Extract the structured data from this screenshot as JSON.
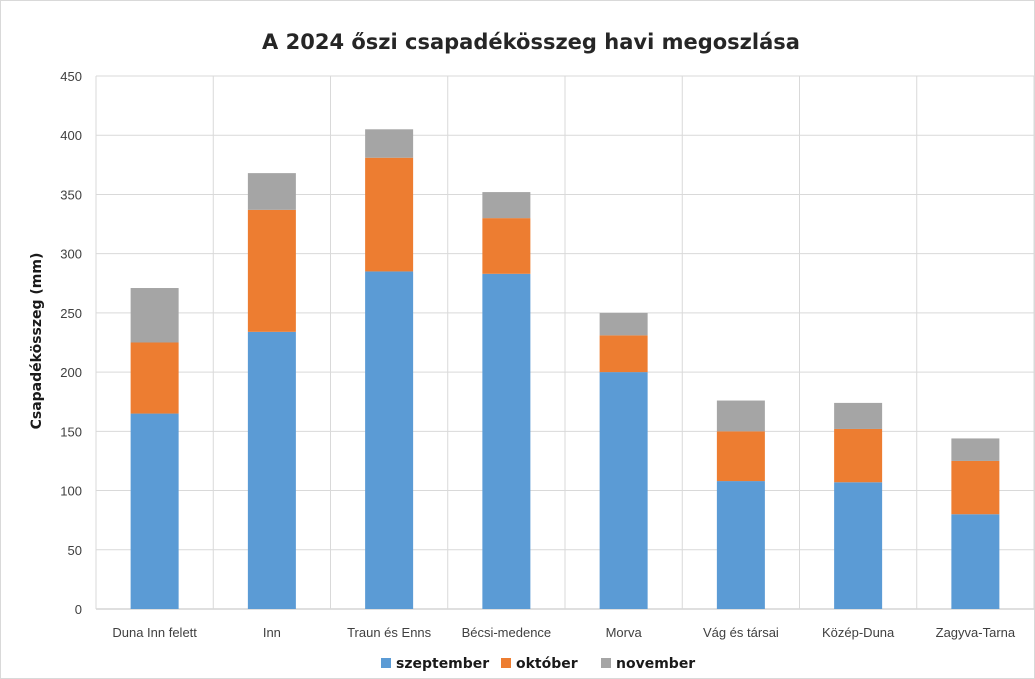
{
  "chart_data": {
    "type": "bar",
    "stacked": true,
    "title": "A 2024 őszi csapadékösszeg havi megoszlása",
    "xlabel": "",
    "ylabel": "Csapadékösszeg (mm)",
    "ylim": [
      0,
      450
    ],
    "yticks": [
      "0",
      "50",
      "100",
      "150",
      "200",
      "250",
      "300",
      "350",
      "400",
      "450"
    ],
    "grid": true,
    "legend_position": "bottom",
    "categories": [
      "Duna Inn felett",
      "Inn",
      "Traun és Enns",
      "Bécsi-medence",
      "Morva",
      "Vág és társai",
      "Közép-Duna",
      "Zagyva-Tarna"
    ],
    "series": [
      {
        "name": "szeptember",
        "color": "#5b9bd5",
        "values": [
          165,
          234,
          285,
          283,
          200,
          108,
          107,
          80
        ]
      },
      {
        "name": "október",
        "color": "#ed7d31",
        "values": [
          60,
          103,
          96,
          47,
          31,
          42,
          45,
          45
        ]
      },
      {
        "name": "november",
        "color": "#a5a5a5",
        "values": [
          46,
          31,
          24,
          22,
          19,
          26,
          22,
          19
        ]
      }
    ]
  }
}
